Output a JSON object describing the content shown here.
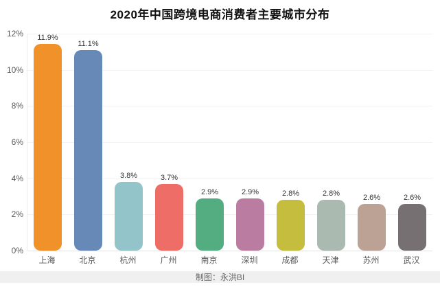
{
  "chart_data": {
    "type": "bar",
    "title": "2020年中国跨境电商消费者主要城市分布",
    "categories": [
      "上海",
      "北京",
      "杭州",
      "广州",
      "南京",
      "深圳",
      "成都",
      "天津",
      "苏州",
      "武汉"
    ],
    "values": [
      11.9,
      11.1,
      3.8,
      3.7,
      2.9,
      2.9,
      2.8,
      2.8,
      2.6,
      2.6
    ],
    "value_labels": [
      "11.9%",
      "11.1%",
      "3.8%",
      "3.7%",
      "2.9%",
      "2.9%",
      "2.8%",
      "2.8%",
      "2.6%",
      "2.6%"
    ],
    "bar_colors": [
      "#F09229",
      "#6789B8",
      "#92C4C9",
      "#EF6D67",
      "#54AC81",
      "#BA7DA1",
      "#C5BD3D",
      "#AABAB0",
      "#BCA295",
      "#767072"
    ],
    "xlabel": "",
    "ylabel": "",
    "ylim": [
      0,
      12
    ],
    "ytick_values": [
      0,
      2,
      4,
      6,
      8,
      10,
      12
    ],
    "yticks": [
      "0%",
      "2%",
      "4%",
      "6%",
      "8%",
      "10%",
      "12%"
    ],
    "grid": true,
    "legend": false,
    "grid_color": "#f2f2f2",
    "baseline_color": "#e2e2e2"
  },
  "footer": {
    "credit": "制图：永洪BI"
  }
}
